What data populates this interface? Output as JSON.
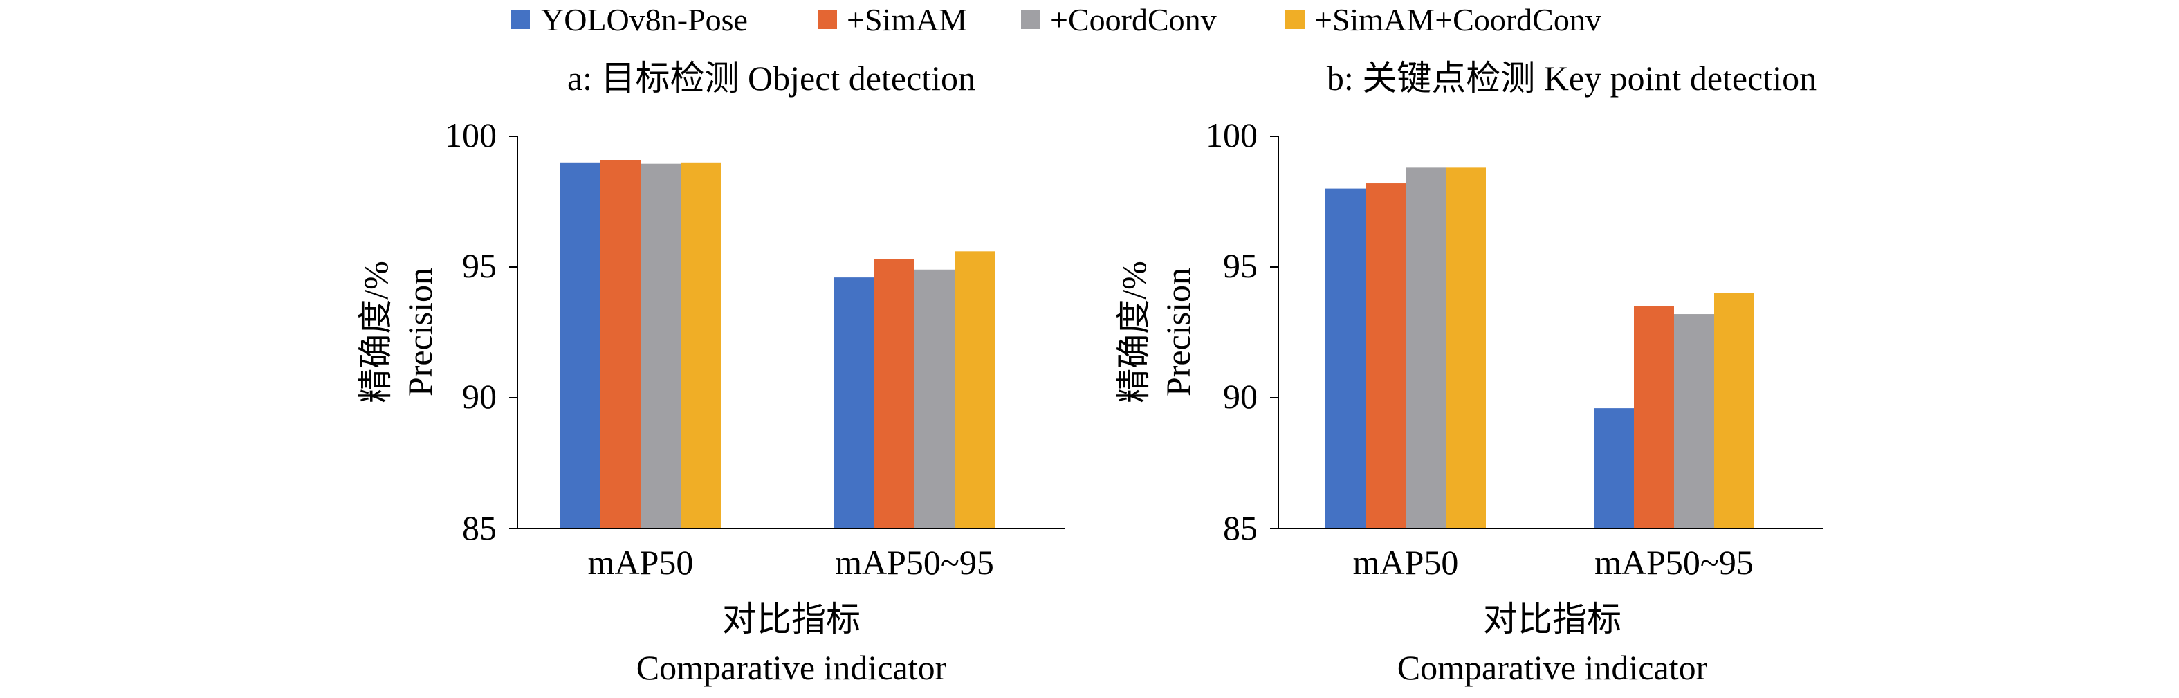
{
  "legend": [
    {
      "name": "YOLOv8n-Pose",
      "color": "#4472C4"
    },
    {
      "name": "+SimAM",
      "color": "#E46633"
    },
    {
      "name": "+CoordConv",
      "color": "#A0A0A4"
    },
    {
      "name": "+SimAM+CoordConv",
      "color": "#F0AE26"
    }
  ],
  "chart_data": [
    {
      "type": "bar",
      "title": "a: 目标检测 Object detection",
      "categories": [
        "mAP50",
        "mAP50~95"
      ],
      "series": [
        {
          "name": "YOLOv8n-Pose",
          "values": [
            99.0,
            94.6
          ]
        },
        {
          "name": "+SimAM",
          "values": [
            99.1,
            95.3
          ]
        },
        {
          "name": "+CoordConv",
          "values": [
            98.95,
            94.9
          ]
        },
        {
          "name": "+SimAM+CoordConv",
          "values": [
            99.0,
            95.6
          ]
        }
      ],
      "ylabel_zh": "精确度/%",
      "ylabel_en": "Precision",
      "xlabel_zh": "对比指标",
      "xlabel_en": "Comparative indicator",
      "ylim": [
        85,
        100
      ],
      "yticks": [
        "85",
        "90",
        "95",
        "100"
      ],
      "grid": false
    },
    {
      "type": "bar",
      "title": "b: 关键点检测 Key point detection",
      "categories": [
        "mAP50",
        "mAP50~95"
      ],
      "series": [
        {
          "name": "YOLOv8n-Pose",
          "values": [
            98.0,
            89.6
          ]
        },
        {
          "name": "+SimAM",
          "values": [
            98.2,
            93.5
          ]
        },
        {
          "name": "+CoordConv",
          "values": [
            98.8,
            93.2
          ]
        },
        {
          "name": "+SimAM+CoordConv",
          "values": [
            98.8,
            94.0
          ]
        }
      ],
      "ylabel_zh": "精确度/%",
      "ylabel_en": "Precision",
      "xlabel_zh": "对比指标",
      "xlabel_en": "Comparative indicator",
      "ylim": [
        85,
        100
      ],
      "yticks": [
        "85",
        "90",
        "95",
        "100"
      ],
      "grid": false
    }
  ]
}
